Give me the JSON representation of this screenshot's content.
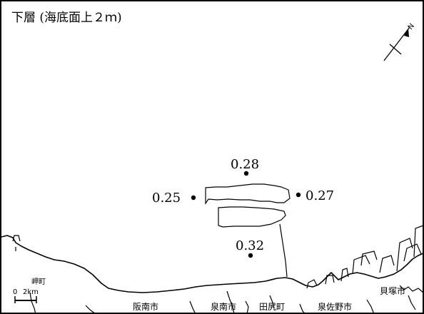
{
  "title": "下層 (海底面上２ｍ)",
  "stations": [
    {
      "id": "north",
      "value": "0.28"
    },
    {
      "id": "west",
      "value": "0.25"
    },
    {
      "id": "east",
      "value": "0.27"
    },
    {
      "id": "south",
      "value": "0.32"
    }
  ],
  "places": {
    "misaki": "岬町",
    "hannan": "阪南市",
    "sennan": "泉南市",
    "tajiri": "田尻町",
    "izumisano": "泉佐野市",
    "kaizuka": "貝塚市"
  },
  "scale": {
    "zero": "0",
    "length": "2km"
  },
  "north_arrow": {
    "label": "N"
  },
  "colors": {
    "ink": "#000000",
    "background": "#ffffff"
  }
}
